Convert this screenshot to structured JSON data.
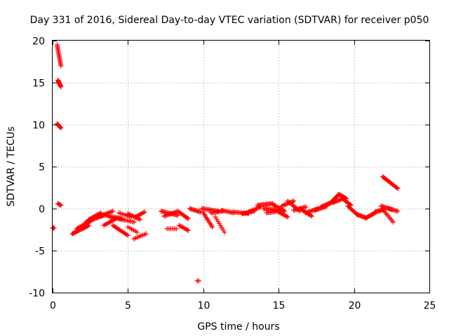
{
  "chart_data": {
    "type": "scatter",
    "title": "Day 331 of 2016, Sidereal Day-to-day VTEC variation (SDTVAR) for receiver p050",
    "xlabel": "GPS time / hours",
    "ylabel": "SDTVAR / TECUs",
    "xlim": [
      0,
      25
    ],
    "ylim": [
      -10,
      20
    ],
    "x_ticks": [
      "0",
      "5",
      "10",
      "15",
      "20",
      "25"
    ],
    "y_ticks": [
      "-10",
      "-5",
      "0",
      "5",
      "10",
      "15",
      "20"
    ],
    "grid": true,
    "marker": "+",
    "colors": {
      "points": "#ff0000",
      "grid": "#a0a0a0",
      "axes": "#000000"
    },
    "series": [
      {
        "name": "SDTVAR",
        "segments": [
          {
            "x0": 0.0,
            "x1": 0.1,
            "y0": -2.3,
            "y1": -2.3,
            "n": 4
          },
          {
            "x0": 0.3,
            "x1": 0.55,
            "y0": 19.5,
            "y1": 17.0,
            "n": 16
          },
          {
            "x0": 0.35,
            "x1": 0.55,
            "y0": 15.3,
            "y1": 14.5,
            "n": 10
          },
          {
            "x0": 0.3,
            "x1": 0.55,
            "y0": 10.1,
            "y1": 9.6,
            "n": 8
          },
          {
            "x0": 0.35,
            "x1": 0.55,
            "y0": 0.6,
            "y1": 0.4,
            "n": 4
          },
          {
            "x0": 1.3,
            "x1": 2.4,
            "y0": -3.0,
            "y1": -2.0,
            "n": 18
          },
          {
            "x0": 1.6,
            "x1": 2.6,
            "y0": -2.4,
            "y1": -1.4,
            "n": 14
          },
          {
            "x0": 2.2,
            "x1": 3.4,
            "y0": -1.6,
            "y1": -0.8,
            "n": 16
          },
          {
            "x0": 2.4,
            "x1": 3.2,
            "y0": -1.3,
            "y1": -0.5,
            "n": 10
          },
          {
            "x0": 3.0,
            "x1": 4.0,
            "y0": -1.0,
            "y1": -0.3,
            "n": 12
          },
          {
            "x0": 3.4,
            "x1": 4.2,
            "y0": -2.0,
            "y1": -1.2,
            "n": 10
          },
          {
            "x0": 3.5,
            "x1": 4.6,
            "y0": -0.8,
            "y1": -1.2,
            "n": 12
          },
          {
            "x0": 3.8,
            "x1": 5.4,
            "y0": -1.0,
            "y1": -1.6,
            "n": 16
          },
          {
            "x0": 4.0,
            "x1": 5.0,
            "y0": -2.0,
            "y1": -3.2,
            "n": 12
          },
          {
            "x0": 4.4,
            "x1": 5.2,
            "y0": -0.5,
            "y1": -1.0,
            "n": 8
          },
          {
            "x0": 5.0,
            "x1": 5.8,
            "y0": -0.6,
            "y1": -1.3,
            "n": 10
          },
          {
            "x0": 5.0,
            "x1": 5.6,
            "y0": -2.2,
            "y1": -2.8,
            "n": 6
          },
          {
            "x0": 5.4,
            "x1": 6.2,
            "y0": -3.6,
            "y1": -3.0,
            "n": 8
          },
          {
            "x0": 5.5,
            "x1": 6.1,
            "y0": -1.0,
            "y1": -0.4,
            "n": 8
          },
          {
            "x0": 7.2,
            "x1": 8.3,
            "y0": -0.3,
            "y1": -0.8,
            "n": 14
          },
          {
            "x0": 7.4,
            "x1": 8.2,
            "y0": -0.9,
            "y1": -0.4,
            "n": 10
          },
          {
            "x0": 7.6,
            "x1": 8.2,
            "y0": -2.4,
            "y1": -2.4,
            "n": 6
          },
          {
            "x0": 8.3,
            "x1": 9.0,
            "y0": -0.3,
            "y1": -1.2,
            "n": 10
          },
          {
            "x0": 8.4,
            "x1": 9.0,
            "y0": -2.0,
            "y1": -2.6,
            "n": 8
          },
          {
            "x0": 9.1,
            "x1": 9.8,
            "y0": 0.0,
            "y1": -0.4,
            "n": 10
          },
          {
            "x0": 9.6,
            "x1": 9.7,
            "y0": -8.6,
            "y1": -8.6,
            "n": 2
          },
          {
            "x0": 10.0,
            "x1": 10.6,
            "y0": -0.5,
            "y1": -2.2,
            "n": 10
          },
          {
            "x0": 9.9,
            "x1": 11.0,
            "y0": 0.0,
            "y1": -0.3,
            "n": 14
          },
          {
            "x0": 10.5,
            "x1": 11.3,
            "y0": -0.5,
            "y1": -0.3,
            "n": 10
          },
          {
            "x0": 10.8,
            "x1": 11.4,
            "y0": -1.0,
            "y1": -2.8,
            "n": 8
          },
          {
            "x0": 11.2,
            "x1": 12.0,
            "y0": -0.2,
            "y1": -0.5,
            "n": 10
          },
          {
            "x0": 12.0,
            "x1": 13.0,
            "y0": -0.4,
            "y1": -0.6,
            "n": 12
          },
          {
            "x0": 12.6,
            "x1": 13.4,
            "y0": -0.6,
            "y1": -0.3,
            "n": 10
          },
          {
            "x0": 13.0,
            "x1": 13.8,
            "y0": -0.4,
            "y1": 0.2,
            "n": 10
          },
          {
            "x0": 13.6,
            "x1": 14.6,
            "y0": 0.4,
            "y1": 0.6,
            "n": 14
          },
          {
            "x0": 14.0,
            "x1": 15.0,
            "y0": 0.0,
            "y1": -0.2,
            "n": 14
          },
          {
            "x0": 14.2,
            "x1": 15.0,
            "y0": -0.5,
            "y1": -0.3,
            "n": 10
          },
          {
            "x0": 14.6,
            "x1": 15.4,
            "y0": 0.5,
            "y1": -0.3,
            "n": 10
          },
          {
            "x0": 15.0,
            "x1": 15.6,
            "y0": -0.4,
            "y1": -1.0,
            "n": 8
          },
          {
            "x0": 15.2,
            "x1": 16.0,
            "y0": 0.3,
            "y1": 0.9,
            "n": 10
          },
          {
            "x0": 15.6,
            "x1": 16.4,
            "y0": 0.9,
            "y1": -0.3,
            "n": 10
          },
          {
            "x0": 16.0,
            "x1": 16.8,
            "y0": -0.2,
            "y1": 0.2,
            "n": 10
          },
          {
            "x0": 16.4,
            "x1": 17.2,
            "y0": 0.0,
            "y1": -0.9,
            "n": 10
          },
          {
            "x0": 16.8,
            "x1": 17.6,
            "y0": -0.5,
            "y1": 0.0,
            "n": 10
          },
          {
            "x0": 17.4,
            "x1": 18.2,
            "y0": -0.2,
            "y1": 0.3,
            "n": 12
          },
          {
            "x0": 17.8,
            "x1": 18.6,
            "y0": 0.2,
            "y1": 0.8,
            "n": 12
          },
          {
            "x0": 18.4,
            "x1": 19.0,
            "y0": 0.6,
            "y1": 1.7,
            "n": 12
          },
          {
            "x0": 18.6,
            "x1": 19.3,
            "y0": 0.7,
            "y1": 1.2,
            "n": 10
          },
          {
            "x0": 19.0,
            "x1": 19.5,
            "y0": 1.7,
            "y1": 1.2,
            "n": 8
          },
          {
            "x0": 19.3,
            "x1": 19.8,
            "y0": 1.1,
            "y1": 0.4,
            "n": 8
          },
          {
            "x0": 19.6,
            "x1": 20.2,
            "y0": 0.3,
            "y1": -0.7,
            "n": 10
          },
          {
            "x0": 20.2,
            "x1": 20.8,
            "y0": -0.7,
            "y1": -1.1,
            "n": 10
          },
          {
            "x0": 20.8,
            "x1": 21.4,
            "y0": -1.1,
            "y1": -0.5,
            "n": 10
          },
          {
            "x0": 21.4,
            "x1": 22.0,
            "y0": -0.4,
            "y1": -0.1,
            "n": 10
          },
          {
            "x0": 21.8,
            "x1": 22.5,
            "y0": 0.3,
            "y1": -0.1,
            "n": 10
          },
          {
            "x0": 22.0,
            "x1": 22.6,
            "y0": -0.3,
            "y1": -1.6,
            "n": 8
          },
          {
            "x0": 22.3,
            "x1": 22.9,
            "y0": 0.0,
            "y1": -0.3,
            "n": 8
          },
          {
            "x0": 21.9,
            "x1": 22.9,
            "y0": 3.8,
            "y1": 2.4,
            "n": 16
          }
        ]
      }
    ]
  }
}
